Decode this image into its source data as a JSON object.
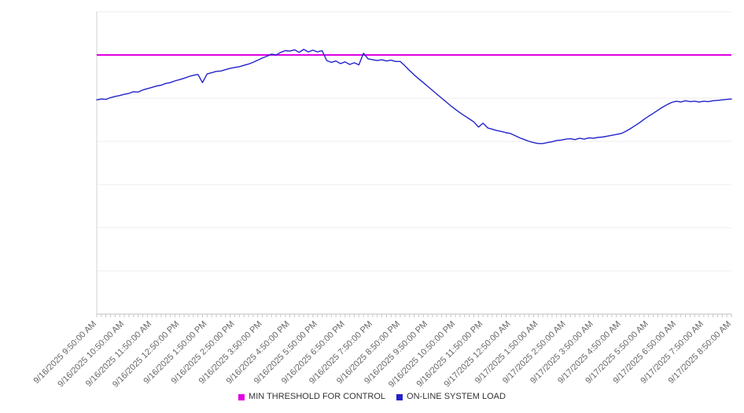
{
  "chart_data": {
    "type": "line",
    "legend_position": "bottom",
    "x_axis": {
      "tick_labels": [
        "9/16/2025 9:50:00 AM",
        "9/16/2025 10:50:00 AM",
        "9/16/2025 11:50:00 AM",
        "9/16/2025 12:50:00 PM",
        "9/16/2025 1:50:00 PM",
        "9/16/2025 2:50:00 PM",
        "9/16/2025 3:50:00 PM",
        "9/16/2025 4:50:00 PM",
        "9/16/2025 5:50:00 PM",
        "9/16/2025 6:50:00 PM",
        "9/16/2025 7:50:00 PM",
        "9/16/2025 8:50:00 PM",
        "9/16/2025 9:50:00 PM",
        "9/16/2025 10:50:00 PM",
        "9/16/2025 11:50:00 PM",
        "9/17/2025 12:50:00 AM",
        "9/17/2025 1:50:00 AM",
        "9/17/2025 2:50:00 AM",
        "9/17/2025 3:50:00 AM",
        "9/17/2025 4:50:00 AM",
        "9/17/2025 5:50:00 AM",
        "9/17/2025 6:50:00 AM",
        "9/17/2025 7:50:00 AM",
        "9/17/2025 8:50:00 AM"
      ],
      "minor_tick_interval_minutes": 10
    },
    "y_axis": {
      "min": 0,
      "max": 70,
      "gridline_step": 10,
      "labels_visible": false
    },
    "series": [
      {
        "name": "MIN THRESHOLD FOR CONTROL",
        "kind": "constant-line",
        "color": "#e100e1",
        "value": 60
      },
      {
        "name": "ON-LINE SYSTEM LOAD",
        "kind": "line",
        "color": "#2222cc",
        "values": [
          49.6,
          49.8,
          49.7,
          50.1,
          50.4,
          50.6,
          50.9,
          51.1,
          51.5,
          51.4,
          51.9,
          52.2,
          52.5,
          52.8,
          53.0,
          53.4,
          53.6,
          54.0,
          54.3,
          54.6,
          55.0,
          55.3,
          55.5,
          53.6,
          55.6,
          55.9,
          56.2,
          56.3,
          56.6,
          56.9,
          57.1,
          57.3,
          57.6,
          57.9,
          58.3,
          58.8,
          59.3,
          59.7,
          60.2,
          60.0,
          60.6,
          61.0,
          60.9,
          61.2,
          60.6,
          61.3,
          60.7,
          61.1,
          60.7,
          61.0,
          58.7,
          58.3,
          58.6,
          58.0,
          58.4,
          57.8,
          58.2,
          57.7,
          60.4,
          59.1,
          58.9,
          58.7,
          58.9,
          58.6,
          58.8,
          58.5,
          58.5,
          57.5,
          56.4,
          55.4,
          54.5,
          53.6,
          52.7,
          51.8,
          50.9,
          50.0,
          49.1,
          48.2,
          47.4,
          46.6,
          45.9,
          45.2,
          44.5,
          43.3,
          44.2,
          43.1,
          42.8,
          42.5,
          42.3,
          42.0,
          41.8,
          41.3,
          40.8,
          40.4,
          40.0,
          39.7,
          39.5,
          39.5,
          39.7,
          39.9,
          40.2,
          40.3,
          40.5,
          40.6,
          40.4,
          40.7,
          40.5,
          40.8,
          40.7,
          40.9,
          41.0,
          41.2,
          41.4,
          41.6,
          41.8,
          42.3,
          42.9,
          43.6,
          44.3,
          45.1,
          45.8,
          46.5,
          47.2,
          47.9,
          48.5,
          49.0,
          49.3,
          49.1,
          49.4,
          49.2,
          49.3,
          49.1,
          49.3,
          49.2,
          49.4,
          49.5,
          49.6,
          49.7,
          49.8
        ]
      }
    ]
  }
}
